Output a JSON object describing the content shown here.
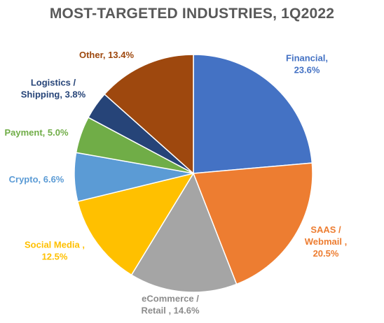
{
  "chart_data": {
    "type": "pie",
    "title": "MOST-TARGETED INDUSTRIES, 1Q2022",
    "slices": [
      {
        "label": [
          "Financial,",
          "23.6%"
        ],
        "value": 23.6,
        "color": "#4472C4"
      },
      {
        "label": [
          "SAAS /",
          "Webmail ,",
          "20.5%"
        ],
        "value": 20.5,
        "color": "#ED7D31"
      },
      {
        "label": [
          "eCommerce /",
          "Retail , 14.6%"
        ],
        "value": 14.6,
        "color": "#A5A5A5"
      },
      {
        "label": [
          "Social Media ,",
          "12.5%"
        ],
        "value": 12.5,
        "color": "#FFC000"
      },
      {
        "label": [
          "Crypto, 6.6%"
        ],
        "value": 6.6,
        "color": "#5B9BD5"
      },
      {
        "label": [
          "Payment, 5.0%"
        ],
        "value": 5.0,
        "color": "#70AD47"
      },
      {
        "label": [
          "Logistics /",
          "Shipping, 3.8%"
        ],
        "value": 3.8,
        "color": "#264478"
      },
      {
        "label": [
          "Other, 13.4%"
        ],
        "value": 13.4,
        "color": "#9E480E"
      }
    ]
  }
}
